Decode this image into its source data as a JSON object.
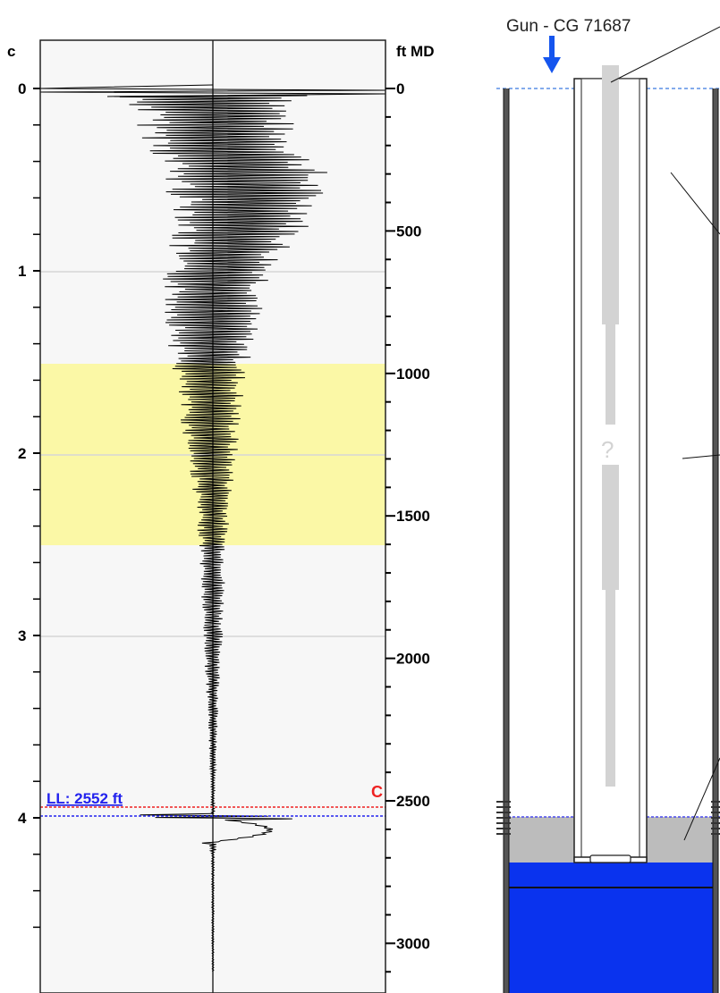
{
  "colors": {
    "zone_highlight": "#fbf8a6",
    "fluid_level_line": "#2222ee",
    "marker_line": "#ee2222",
    "liquid": "#0a33ee",
    "sediment": "#bcbcbc",
    "string": "#d3d3d3",
    "gun_arrow": "#1555ee"
  },
  "icons": {
    "gun_arrow": "down-arrow-icon"
  },
  "plot": {
    "left_axis_unit": "c",
    "right_axis_unit": "ft MD",
    "left_ticks": [
      "0",
      "1",
      "2",
      "3",
      "4"
    ],
    "right_ticks": [
      "0",
      "500",
      "1000",
      "1500",
      "2000",
      "2500",
      "3000"
    ],
    "fluid_level_label": "LL: 2552 ft",
    "marker_label": "C"
  },
  "wellbore": {
    "gun_label": "Gun - CG 71687",
    "unknown_label": "?"
  },
  "chart_data": {
    "type": "line",
    "left_axis": {
      "unit": "c",
      "range": [
        0,
        4.85
      ]
    },
    "right_axis": {
      "unit": "ft MD",
      "range": [
        0,
        3100
      ]
    },
    "highlight_zone": {
      "y_start_ft": 955,
      "y_end_ft": 1595
    },
    "fluid_level": {
      "depth_ft": 2552,
      "label": "LL: 2552 ft"
    },
    "marker": {
      "depth_ft": 2510,
      "label": "C"
    },
    "trace": {
      "description_amplitude_envelope": [
        [
          0,
          0.85
        ],
        [
          60,
          0.5
        ],
        [
          150,
          0.45
        ],
        [
          300,
          0.5
        ],
        [
          450,
          0.42
        ],
        [
          600,
          0.36
        ],
        [
          800,
          0.28
        ],
        [
          1000,
          0.22
        ],
        [
          1200,
          0.17
        ],
        [
          1400,
          0.12
        ],
        [
          1600,
          0.08
        ],
        [
          1800,
          0.07
        ],
        [
          2000,
          0.05
        ],
        [
          2200,
          0.03
        ],
        [
          2400,
          0.015
        ],
        [
          2500,
          0.01
        ],
        [
          3100,
          0.005
        ]
      ],
      "center_shift_envelope": [
        [
          0,
          0.0
        ],
        [
          150,
          0.02
        ],
        [
          300,
          0.18
        ],
        [
          450,
          0.2
        ],
        [
          600,
          0.05
        ],
        [
          800,
          0.0
        ],
        [
          1000,
          -0.02
        ],
        [
          1400,
          0.0
        ],
        [
          2000,
          0.0
        ],
        [
          3100,
          0.0
        ]
      ],
      "event": {
        "depth_ft": 2560,
        "amplitude": 0.35
      }
    }
  }
}
